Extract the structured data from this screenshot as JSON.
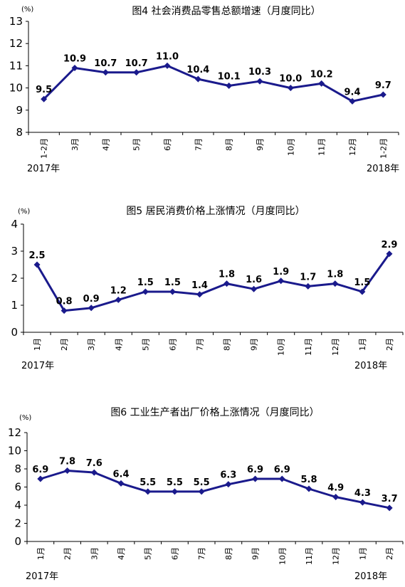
{
  "chart_data": [
    {
      "type": "line",
      "title": "图4  社会消费品零售总额增速（月度同比）",
      "unit_label": "(%)",
      "categories": [
        "1-2月",
        "3月",
        "4月",
        "5月",
        "6月",
        "7月",
        "8月",
        "9月",
        "10月",
        "11月",
        "12月",
        "1-2月"
      ],
      "values": [
        9.5,
        10.9,
        10.7,
        10.7,
        11.0,
        10.4,
        10.1,
        10.3,
        10.0,
        10.2,
        9.4,
        9.7
      ],
      "data_labels": [
        "9.5",
        "10.9",
        "10.7",
        "10.7",
        "11.0",
        "10.4",
        "10.1",
        "10.3",
        "10.0",
        "10.2",
        "9.4",
        "9.7"
      ],
      "ylim": [
        8,
        13
      ],
      "yticks": [
        8,
        9,
        10,
        11,
        12,
        13
      ],
      "year_start": "2017年",
      "year_end": "2018年",
      "color": "#1a1a8c"
    },
    {
      "type": "line",
      "title": "图5  居民消费价格上涨情况（月度同比）",
      "unit_label": "(%)",
      "categories": [
        "1月",
        "2月",
        "3月",
        "4月",
        "5月",
        "6月",
        "7月",
        "8月",
        "9月",
        "10月",
        "11月",
        "12月",
        "1月",
        "2月"
      ],
      "values": [
        2.5,
        0.8,
        0.9,
        1.2,
        1.5,
        1.5,
        1.4,
        1.8,
        1.6,
        1.9,
        1.7,
        1.8,
        1.5,
        2.9
      ],
      "data_labels": [
        "2.5",
        "0.8",
        "0.9",
        "1.2",
        "1.5",
        "1.5",
        "1.4",
        "1.8",
        "1.6",
        "1.9",
        "1.7",
        "1.8",
        "1.5",
        "2.9"
      ],
      "ylim": [
        0,
        4
      ],
      "yticks": [
        0,
        1,
        2,
        3,
        4
      ],
      "year_start": "2017年",
      "year_end": "2018年",
      "color": "#1a1a8c"
    },
    {
      "type": "line",
      "title": "图6 工业生产者出厂价格上涨情况（月度同比）",
      "unit_label": "(%)",
      "categories": [
        "1月",
        "2月",
        "3月",
        "4月",
        "5月",
        "6月",
        "7月",
        "8月",
        "9月",
        "10月",
        "11月",
        "12月",
        "1月",
        "2月"
      ],
      "values": [
        6.9,
        7.8,
        7.6,
        6.4,
        5.5,
        5.5,
        5.5,
        6.3,
        6.9,
        6.9,
        5.8,
        4.9,
        4.3,
        3.7
      ],
      "data_labels": [
        "6.9",
        "7.8",
        "7.6",
        "6.4",
        "5.5",
        "5.5",
        "5.5",
        "6.3",
        "6.9",
        "6.9",
        "5.8",
        "4.9",
        "4.3",
        "3.7"
      ],
      "ylim": [
        0,
        12
      ],
      "yticks": [
        0,
        2,
        4,
        6,
        8,
        10,
        12
      ],
      "year_start": "2017年",
      "year_end": "2018年",
      "color": "#1a1a8c"
    }
  ]
}
